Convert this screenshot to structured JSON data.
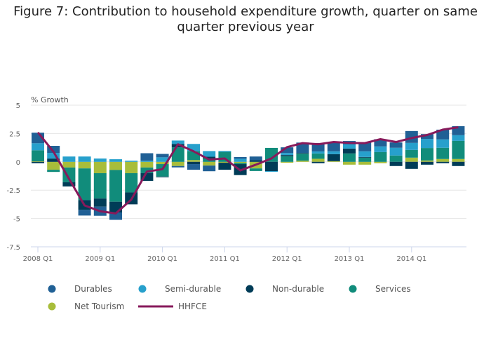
{
  "chart_data": {
    "type": "bar",
    "stacked": true,
    "title": "Figure 7: Contribution to household expenditure growth, quarter on same quarter previous year",
    "ylabel": "% Growth",
    "xlabel": "",
    "ylim": [
      -7.5,
      5
    ],
    "yticks": [
      5,
      2.5,
      0,
      -2.5,
      -5,
      -7.5
    ],
    "ytick_labels": [
      "5",
      "2.5",
      "0",
      "-2.5",
      "-5",
      "-7.5"
    ],
    "grid": true,
    "legend": "bottom",
    "categories": [
      "2008 Q1",
      "2008 Q2",
      "2008 Q3",
      "2008 Q4",
      "2009 Q1",
      "2009 Q2",
      "2009 Q3",
      "2009 Q4",
      "2010 Q1",
      "2010 Q2",
      "2010 Q3",
      "2010 Q4",
      "2011 Q1",
      "2011 Q2",
      "2011 Q3",
      "2011 Q4",
      "2012 Q1",
      "2012 Q2",
      "2012 Q3",
      "2012 Q4",
      "2013 Q1",
      "2013 Q2",
      "2013 Q3",
      "2013 Q4",
      "2014 Q1",
      "2014 Q2",
      "2014 Q3",
      "2014 Q4"
    ],
    "xtick_labels": [
      "2008 Q1",
      "2009 Q1",
      "2010 Q1",
      "2011 Q1",
      "2012 Q1",
      "2013 Q1",
      "2014 Q1"
    ],
    "series": [
      {
        "name": "Durables",
        "kind": "bar",
        "color": "#206095",
        "values": [
          0.93,
          0.62,
          0,
          -0.5,
          -0.8,
          -0.65,
          0,
          0.66,
          0.3,
          -0.12,
          -0.5,
          -0.5,
          0,
          0.15,
          0.33,
          0,
          0.5,
          0.92,
          0.74,
          0.78,
          0.3,
          0.78,
          0.64,
          0.47,
          1.05,
          0.43,
          0.86,
          0.8
        ]
      },
      {
        "name": "Semi-durable",
        "kind": "bar",
        "color": "#27a0cc",
        "values": [
          0.62,
          0.5,
          0.47,
          0.47,
          0.29,
          0.23,
          0.1,
          0.1,
          0.4,
          0.3,
          0.62,
          0.5,
          0.08,
          0.27,
          0,
          -0.06,
          0.18,
          0,
          0.18,
          0.25,
          0.37,
          0.5,
          0.5,
          0.68,
          0.62,
          0.8,
          0.74,
          0.5
        ]
      },
      {
        "name": "Non-durable",
        "kind": "bar",
        "color": "#003c57",
        "values": [
          -0.12,
          0.29,
          -0.37,
          -0.86,
          -0.72,
          -0.95,
          -1.05,
          -0.68,
          -0.06,
          0.3,
          -0.2,
          0.15,
          -0.62,
          -0.97,
          0.14,
          -0.82,
          0.1,
          0.06,
          -0.12,
          0.62,
          0.43,
          0.06,
          0,
          -0.37,
          -0.62,
          -0.25,
          -0.12,
          -0.37
        ]
      },
      {
        "name": "Services",
        "kind": "bar",
        "color": "#118c7b",
        "values": [
          0.97,
          -0.19,
          -1.3,
          -2.8,
          -2.24,
          -2.8,
          -1.7,
          -0.5,
          -1.1,
          1.28,
          0.8,
          0.3,
          0.88,
          -0.1,
          -0.23,
          1.23,
          0.5,
          0.62,
          0.47,
          0,
          0.74,
          0.37,
          0.86,
          0.56,
          0.68,
          1.1,
          0.99,
          1.6
        ]
      },
      {
        "name": "Net Tourism",
        "kind": "bar",
        "color": "#a8bd3a",
        "values": [
          0.05,
          -0.7,
          -0.5,
          -0.58,
          -1.0,
          -0.72,
          -1.0,
          -0.5,
          -0.2,
          -0.37,
          0.16,
          -0.33,
          -0.08,
          -0.1,
          -0.58,
          0,
          -0.08,
          0.1,
          0.27,
          0.06,
          -0.25,
          -0.25,
          -0.12,
          0,
          0.37,
          0.12,
          0.25,
          0.25
        ]
      },
      {
        "name": "HHFCE",
        "kind": "line",
        "color": "#871a5b",
        "values": [
          2.6,
          0.9,
          -1.5,
          -3.85,
          -4.36,
          -4.55,
          -3.33,
          -0.86,
          -0.65,
          1.55,
          0.93,
          0.2,
          0.3,
          -0.76,
          -0.25,
          0.3,
          1.3,
          1.65,
          1.55,
          1.75,
          1.67,
          1.65,
          2.0,
          1.75,
          2.1,
          2.37,
          2.84,
          3.05
        ]
      }
    ]
  }
}
